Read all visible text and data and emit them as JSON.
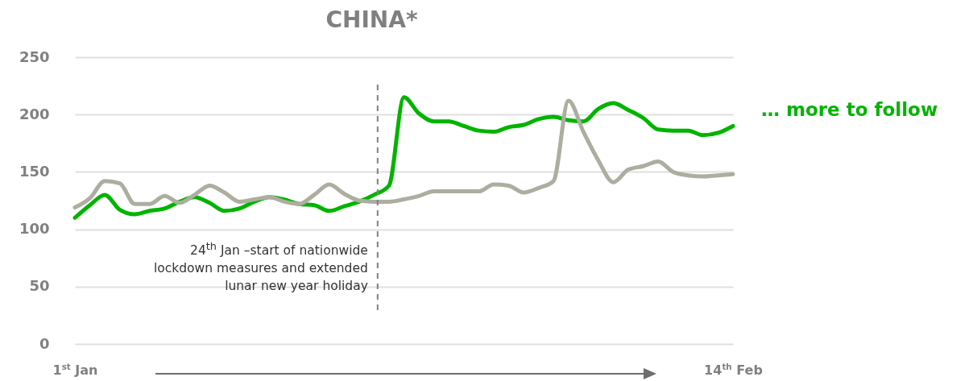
{
  "chart_data": {
    "type": "line",
    "title": "CHINA*",
    "categories": [
      "1$^{st}$ Jan",
      null,
      null,
      null,
      null,
      null,
      null,
      null,
      null,
      null,
      null,
      null,
      null,
      null,
      null,
      null,
      null,
      null,
      null,
      null,
      null,
      null,
      null,
      null,
      null,
      null,
      null,
      null,
      null,
      null,
      null,
      null,
      null,
      null,
      null,
      null,
      null,
      null,
      null,
      null,
      null,
      null,
      null,
      null,
      "14$^{th}$ Feb"
    ],
    "series": [
      {
        "color": "#00b400",
        "values": [
          110,
          121,
          130,
          117,
          113,
          116,
          118,
          124,
          128,
          123,
          116,
          118,
          124,
          128,
          126,
          122,
          121,
          116,
          120,
          124,
          130,
          138,
          215,
          201,
          194,
          194,
          190,
          186,
          185,
          189,
          191,
          196,
          198,
          195,
          194,
          205,
          210,
          204,
          197,
          187,
          186,
          186,
          182,
          184,
          190
        ]
      },
      {
        "color": "#adada0",
        "values": [
          119,
          127,
          142,
          140,
          122,
          122,
          129,
          123,
          130,
          138,
          132,
          124,
          126,
          128,
          124,
          122,
          130,
          139,
          131,
          125,
          124,
          124,
          126,
          129,
          133,
          133,
          133,
          133,
          139,
          138,
          132,
          136,
          142,
          212,
          185,
          160,
          141,
          152,
          155,
          159,
          150,
          147,
          146,
          147,
          148
        ]
      }
    ],
    "ylim": [
      0,
      250
    ],
    "yticks": [
      0,
      50,
      100,
      150,
      200,
      250
    ],
    "grid": "y",
    "line_style": "solid",
    "annotations": [
      "24$^{th}$ Jan –start of nationwide lockdown measures and extended lunar new year holiday",
      "… more to follow"
    ]
  }
}
